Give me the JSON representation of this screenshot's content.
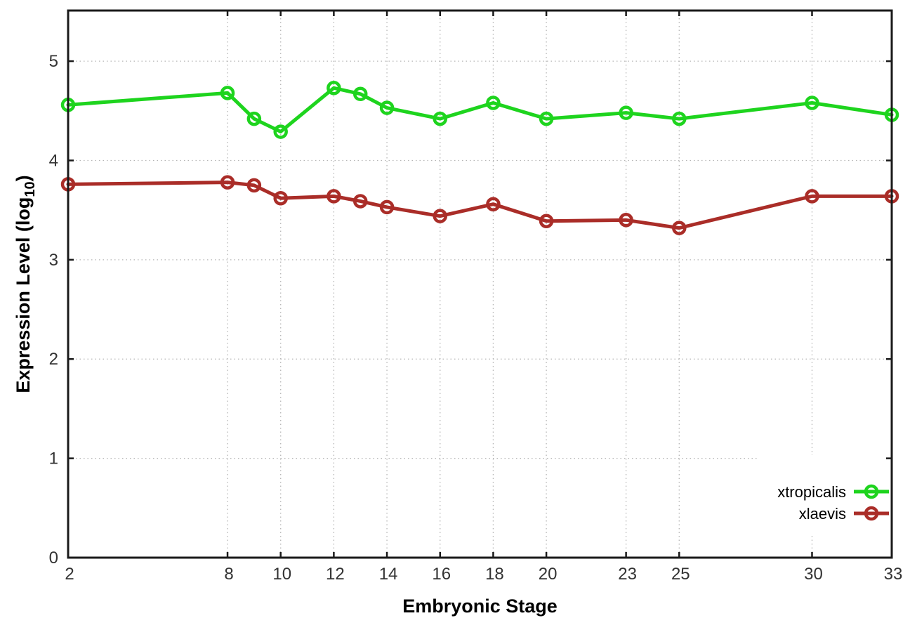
{
  "chart_data": {
    "type": "line",
    "title": "",
    "xlabel": "Embryonic Stage",
    "ylabel": {
      "prefix": "Expression Level (log",
      "sub": "10",
      "suffix": ")"
    },
    "xlim": [
      2,
      33
    ],
    "ylim": [
      0,
      5.51
    ],
    "xticks": [
      "2",
      "8",
      "10",
      "12",
      "14",
      "16",
      "18",
      "20",
      "23",
      "25",
      "30",
      "33"
    ],
    "yticks": [
      "0",
      "1",
      "2",
      "3",
      "4",
      "5"
    ],
    "grid": true,
    "legend_position": "bottom-right",
    "marker": "open-circle",
    "x": [
      2,
      8,
      9,
      10,
      12,
      13,
      14,
      16,
      18,
      20,
      23,
      25,
      30,
      33
    ],
    "series": [
      {
        "name": "xtropicalis",
        "color": "#1ed41e",
        "values": [
          4.56,
          4.68,
          4.42,
          4.29,
          4.73,
          4.67,
          4.53,
          4.42,
          4.58,
          4.42,
          4.48,
          4.42,
          4.58,
          4.46
        ]
      },
      {
        "name": "xlaevis",
        "color": "#aa2d28",
        "values": [
          3.76,
          3.78,
          3.75,
          3.62,
          3.64,
          3.59,
          3.53,
          3.44,
          3.56,
          3.39,
          3.4,
          3.32,
          3.64,
          3.64
        ]
      }
    ],
    "colors": {
      "grid": "#b5b5b5",
      "axis": "#1a1a1a",
      "tick_text": "#333333",
      "label_text": "#000000",
      "background": "#ffffff"
    }
  }
}
